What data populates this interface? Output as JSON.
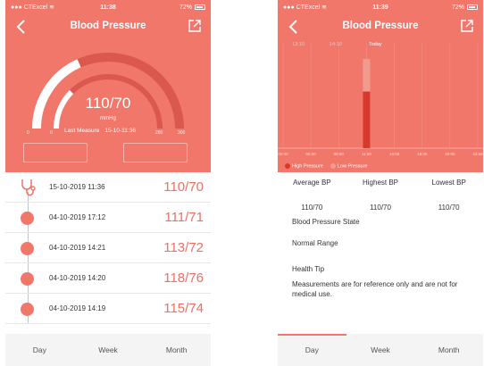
{
  "left": {
    "status": {
      "carrier": "CTExcel",
      "time": "11:38",
      "battery": "72%"
    },
    "title": "Blood Pressure",
    "reading": {
      "value": "110/70",
      "unit": "mmHg"
    },
    "last_measure": {
      "label": "Last Measure",
      "value": "15-10-11:36"
    },
    "gauge": {
      "scale_labels": [
        "0",
        "0",
        "280",
        "300"
      ],
      "outer_fraction": 0.367,
      "inner_fraction": 0.25
    },
    "records": [
      {
        "date": "15-10-2019 11:36",
        "bp": "110/70",
        "icon": "stethoscope-icon"
      },
      {
        "date": "04-10-2019 17:12",
        "bp": "111/71"
      },
      {
        "date": "04-10-2019 14:21",
        "bp": "113/72"
      },
      {
        "date": "04-10-2019 14:20",
        "bp": "118/76"
      },
      {
        "date": "04-10-2019 14:19",
        "bp": "115/74"
      }
    ],
    "tabs": [
      "Day",
      "Week",
      "Month"
    ]
  },
  "right": {
    "status": {
      "carrier": "CTExcel",
      "time": "11:39",
      "battery": "72%"
    },
    "title": "Blood Pressure",
    "top_labels": [
      "13:10",
      "14:10",
      "Today"
    ],
    "chart_data": {
      "type": "bar",
      "categories": [
        "00:00",
        "05:00",
        "09:00",
        "11:00",
        "15:00",
        "18:00",
        "20:00",
        "23:59"
      ],
      "series": [
        {
          "name": "High Pressure",
          "values": [
            0,
            0,
            0,
            110,
            0,
            0,
            0,
            0
          ]
        },
        {
          "name": "Low Pressure",
          "values": [
            0,
            0,
            0,
            70,
            0,
            0,
            0,
            0
          ]
        }
      ],
      "ylim": [
        0,
        130
      ],
      "colors": {
        "high": "#d9392c",
        "low": "#f39a90"
      },
      "legend": "bottom-left"
    },
    "stats": [
      {
        "label": "Average BP",
        "value": "110/70"
      },
      {
        "label": "Highest BP",
        "value": "110/70"
      },
      {
        "label": "Lowest BP",
        "value": "110/70"
      }
    ],
    "state_label": "Blood Pressure State",
    "state_value": "Normal Range",
    "tip_label": "Health Tip",
    "tip_text": "Measurements are for reference only and are not for medical use.",
    "tabs": [
      "Day",
      "Week",
      "Month"
    ]
  },
  "accent": "#f0776a"
}
